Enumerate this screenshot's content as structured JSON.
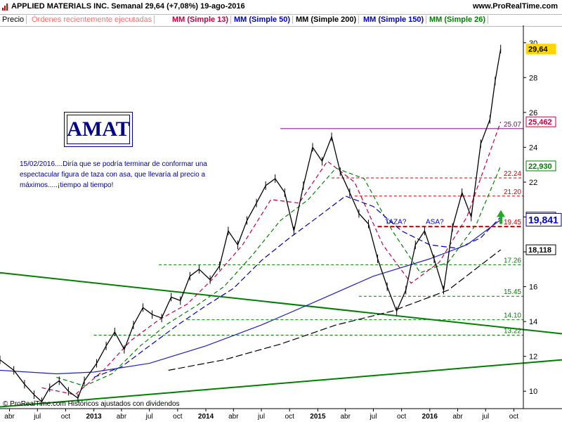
{
  "header": {
    "title": "APPLIED MATERIALS INC.   Semanal   29,64 (+7,08%)   19-ago-2016",
    "brand": "www.ProRealTime.com"
  },
  "legend": [
    {
      "label": "Precio",
      "color": "#000000"
    },
    {
      "label": "Órdenes recientemente ejecutadas",
      "color": "#ff7070"
    },
    {
      "label": "MM (Simple 13)",
      "color": "#c00040"
    },
    {
      "label": "MM (Simple 50)",
      "color": "#0000c0"
    },
    {
      "label": "MM (Simple 200)",
      "color": "#000000"
    },
    {
      "label": "MM (Simple 150)",
      "color": "#0000c0"
    },
    {
      "label": "MM (Simple 26)",
      "color": "#008000"
    }
  ],
  "annotation": {
    "ticker": "AMAT",
    "note": "15/02/2016....Diría que se podría terminar de conformar una espectacular figura de taza con asa, que llevaría al precio a máximos.....¡tiempo al tiempo!",
    "taza": "TAZA?",
    "asa": "ASA?"
  },
  "footer": "© ProRealTime.com  Históricos ajustados con dividendos",
  "chart_data": {
    "type": "line",
    "ylim": [
      9,
      31
    ],
    "y_ticks": [
      10,
      12,
      14,
      16,
      18,
      20,
      22,
      24,
      26,
      28,
      30
    ],
    "x_ticks": [
      {
        "label": "abr",
        "date": "2012-04"
      },
      {
        "label": "jul",
        "date": "2012-07"
      },
      {
        "label": "oct",
        "date": "2012-10"
      },
      {
        "label": "2013",
        "date": "2013-01"
      },
      {
        "label": "abr",
        "date": "2013-04"
      },
      {
        "label": "jul",
        "date": "2013-07"
      },
      {
        "label": "oct",
        "date": "2013-10"
      },
      {
        "label": "2014",
        "date": "2014-01"
      },
      {
        "label": "abr",
        "date": "2014-04"
      },
      {
        "label": "jul",
        "date": "2014-07"
      },
      {
        "label": "oct",
        "date": "2014-10"
      },
      {
        "label": "2015",
        "date": "2015-01"
      },
      {
        "label": "abr",
        "date": "2015-04"
      },
      {
        "label": "jul",
        "date": "2015-07"
      },
      {
        "label": "oct",
        "date": "2015-10"
      },
      {
        "label": "2016",
        "date": "2016-01"
      },
      {
        "label": "abr",
        "date": "2016-04"
      },
      {
        "label": "jul",
        "date": "2016-07"
      },
      {
        "label": "oct",
        "date": "2016-10"
      }
    ],
    "x_range": [
      "2012-03",
      "2016-11"
    ],
    "series": [
      {
        "name": "Precio",
        "color": "#000000",
        "values": [
          [
            "2012-03-01",
            11.8
          ],
          [
            "2012-04-15",
            11.2
          ],
          [
            "2012-05-20",
            10.4
          ],
          [
            "2012-06-20",
            9.8
          ],
          [
            "2012-07-15",
            9.4
          ],
          [
            "2012-08-10",
            10.2
          ],
          [
            "2012-09-10",
            10.6
          ],
          [
            "2012-10-10",
            10.0
          ],
          [
            "2012-11-10",
            9.6
          ],
          [
            "2012-12-01",
            10.6
          ],
          [
            "2013-01-10",
            11.6
          ],
          [
            "2013-02-10",
            12.6
          ],
          [
            "2013-03-10",
            13.4
          ],
          [
            "2013-04-10",
            12.4
          ],
          [
            "2013-05-10",
            13.8
          ],
          [
            "2013-06-10",
            14.8
          ],
          [
            "2013-07-10",
            14.4
          ],
          [
            "2013-08-10",
            14.2
          ],
          [
            "2013-09-10",
            15.4
          ],
          [
            "2013-10-10",
            15.2
          ],
          [
            "2013-11-10",
            16.6
          ],
          [
            "2013-12-10",
            17.0
          ],
          [
            "2014-01-15",
            16.4
          ],
          [
            "2014-02-15",
            17.2
          ],
          [
            "2014-03-15",
            19.2
          ],
          [
            "2014-04-15",
            18.4
          ],
          [
            "2014-05-15",
            19.8
          ],
          [
            "2014-06-15",
            20.8
          ],
          [
            "2014-07-15",
            21.8
          ],
          [
            "2014-08-15",
            22.2
          ],
          [
            "2014-09-15",
            21.4
          ],
          [
            "2014-10-15",
            19.2
          ],
          [
            "2014-11-15",
            21.8
          ],
          [
            "2014-12-15",
            24.0
          ],
          [
            "2015-01-15",
            23.2
          ],
          [
            "2015-02-15",
            24.6
          ],
          [
            "2015-03-15",
            22.6
          ],
          [
            "2015-04-15",
            21.4
          ],
          [
            "2015-05-15",
            20.2
          ],
          [
            "2015-06-15",
            19.6
          ],
          [
            "2015-07-15",
            17.6
          ],
          [
            "2015-08-15",
            16.0
          ],
          [
            "2015-09-15",
            14.6
          ],
          [
            "2015-10-15",
            15.8
          ],
          [
            "2015-11-15",
            18.4
          ],
          [
            "2015-12-15",
            19.2
          ],
          [
            "2016-01-15",
            17.6
          ],
          [
            "2016-02-15",
            15.8
          ],
          [
            "2016-03-15",
            19.4
          ],
          [
            "2016-04-15",
            21.4
          ],
          [
            "2016-05-15",
            20.0
          ],
          [
            "2016-06-15",
            24.2
          ],
          [
            "2016-07-15",
            25.6
          ],
          [
            "2016-08-01",
            27.8
          ],
          [
            "2016-08-19",
            29.64
          ]
        ]
      },
      {
        "name": "MM (Simple 13)",
        "color": "#c00040",
        "dash": "6,4",
        "values": [
          [
            "2012-07-15",
            10.2
          ],
          [
            "2012-11-01",
            9.8
          ],
          [
            "2013-02-01",
            11.2
          ],
          [
            "2013-05-01",
            12.9
          ],
          [
            "2013-08-01",
            14.1
          ],
          [
            "2013-11-01",
            15.0
          ],
          [
            "2014-02-01",
            16.6
          ],
          [
            "2014-05-01",
            18.4
          ],
          [
            "2014-08-01",
            21.0
          ],
          [
            "2014-11-01",
            20.8
          ],
          [
            "2015-02-01",
            23.2
          ],
          [
            "2015-05-01",
            22.0
          ],
          [
            "2015-08-01",
            18.4
          ],
          [
            "2015-11-01",
            16.2
          ],
          [
            "2016-02-01",
            17.4
          ],
          [
            "2016-05-01",
            20.0
          ],
          [
            "2016-08-19",
            25.462
          ]
        ]
      },
      {
        "name": "MM (Simple 26)",
        "color": "#008000",
        "dash": "6,4",
        "values": [
          [
            "2012-09-01",
            10.8
          ],
          [
            "2012-12-01",
            10.3
          ],
          [
            "2013-03-01",
            11.0
          ],
          [
            "2013-06-01",
            12.6
          ],
          [
            "2013-09-01",
            13.9
          ],
          [
            "2013-12-01",
            14.9
          ],
          [
            "2014-03-01",
            16.0
          ],
          [
            "2014-06-01",
            17.8
          ],
          [
            "2014-09-01",
            19.8
          ],
          [
            "2014-12-01",
            21.0
          ],
          [
            "2015-03-01",
            22.8
          ],
          [
            "2015-06-01",
            22.2
          ],
          [
            "2015-09-01",
            19.2
          ],
          [
            "2015-12-01",
            16.8
          ],
          [
            "2016-03-01",
            17.4
          ],
          [
            "2016-06-01",
            19.6
          ],
          [
            "2016-08-19",
            22.93
          ]
        ]
      },
      {
        "name": "MM (Simple 50)",
        "color": "#0000c0",
        "dash": "8,4",
        "values": [
          [
            "2013-01-01",
            10.8
          ],
          [
            "2013-04-01",
            11.4
          ],
          [
            "2013-07-01",
            12.6
          ],
          [
            "2013-10-01",
            13.8
          ],
          [
            "2014-01-01",
            14.9
          ],
          [
            "2014-04-01",
            15.9
          ],
          [
            "2014-07-01",
            17.5
          ],
          [
            "2014-10-01",
            18.8
          ],
          [
            "2015-01-01",
            20.0
          ],
          [
            "2015-04-01",
            21.2
          ],
          [
            "2015-07-01",
            20.6
          ],
          [
            "2015-10-01",
            19.2
          ],
          [
            "2016-01-01",
            18.4
          ],
          [
            "2016-04-01",
            18.2
          ],
          [
            "2016-06-15",
            18.8
          ],
          [
            "2016-08-19",
            19.994
          ]
        ]
      },
      {
        "name": "MM (Simple 150)",
        "color": "#2020c0",
        "dash": "",
        "values": [
          [
            "2012-03-01",
            11.2
          ],
          [
            "2012-09-01",
            11.0
          ],
          [
            "2013-01-01",
            11.1
          ],
          [
            "2013-07-01",
            11.6
          ],
          [
            "2014-01-01",
            12.6
          ],
          [
            "2014-07-01",
            13.8
          ],
          [
            "2015-01-01",
            15.2
          ],
          [
            "2015-07-01",
            16.6
          ],
          [
            "2016-01-01",
            17.6
          ],
          [
            "2016-05-01",
            18.4
          ],
          [
            "2016-08-19",
            19.841
          ]
        ]
      },
      {
        "name": "MM (Simple 200)",
        "color": "#000000",
        "dash": "10,4",
        "values": [
          [
            "2013-09-01",
            11.2
          ],
          [
            "2014-03-01",
            11.8
          ],
          [
            "2014-09-01",
            12.7
          ],
          [
            "2015-03-01",
            13.8
          ],
          [
            "2015-09-01",
            14.6
          ],
          [
            "2016-03-01",
            15.8
          ],
          [
            "2016-08-19",
            18.118
          ]
        ]
      }
    ],
    "trendlines": [
      {
        "name": "upper",
        "color": "#008000",
        "from": [
          "2012-03-01",
          16.8
        ],
        "to": [
          "2016-11-01",
          13.3
        ]
      },
      {
        "name": "lower",
        "color": "#008000",
        "from": [
          "2012-03-01",
          9.1
        ],
        "to": [
          "2016-11-01",
          11.8
        ]
      }
    ],
    "levels": [
      {
        "value": 25.07,
        "label": "25.07",
        "color": "#800080",
        "from": "2014-09-01",
        "style": "solid",
        "label_color": "#800080"
      },
      {
        "value": 22.24,
        "label": "22.24",
        "color": "#d00000",
        "from": "2015-02-15",
        "style": "dash",
        "label_color": "#d00000"
      },
      {
        "value": 21.2,
        "label": "21.20",
        "color": "#d00000",
        "from": "2015-05-01",
        "style": "dash",
        "label_color": "#d00000"
      },
      {
        "value": 19.45,
        "label": "19.45",
        "color": "#d00000",
        "from": "2015-07-15",
        "style": "dash-bold",
        "label_color": "#d00000"
      },
      {
        "value": 17.26,
        "label": "17.26",
        "color": "#008000",
        "from": "2013-08-01",
        "style": "dash",
        "label_color": "#008000"
      },
      {
        "value": 15.45,
        "label": "15.45",
        "color": "#008000",
        "from": "2015-05-15",
        "style": "dash",
        "label_color": "#008000"
      },
      {
        "value": 14.1,
        "label": "14.10",
        "color": "#008000",
        "from": "2013-11-01",
        "style": "dash",
        "label_color": "#008000"
      },
      {
        "value": 13.22,
        "label": "13.22",
        "color": "#008000",
        "from": "2013-01-01",
        "style": "dash",
        "label_color": "#008000"
      }
    ],
    "badges": [
      {
        "value": 29.64,
        "label": "29,64",
        "bg": "#ffd700",
        "fg": "#000000",
        "bold": true
      },
      {
        "value": 25.462,
        "label": "25,462",
        "bg": "#ffffff",
        "fg": "#c00040",
        "border": "#c00040"
      },
      {
        "value": 22.93,
        "label": "22,930",
        "bg": "#ffffff",
        "fg": "#008000",
        "border": "#008000"
      },
      {
        "value": 19.994,
        "label": "19,994",
        "bg": "#ffffff",
        "fg": "#0000c0",
        "border": "#0000c0"
      },
      {
        "value": 19.841,
        "label": "19,841",
        "bg": "#ffffff",
        "fg": "#0000c0",
        "border": "#0000c0",
        "big": true
      },
      {
        "value": 18.118,
        "label": "18,118",
        "bg": "#ffffff",
        "fg": "#000000",
        "border": "#000000"
      }
    ]
  }
}
